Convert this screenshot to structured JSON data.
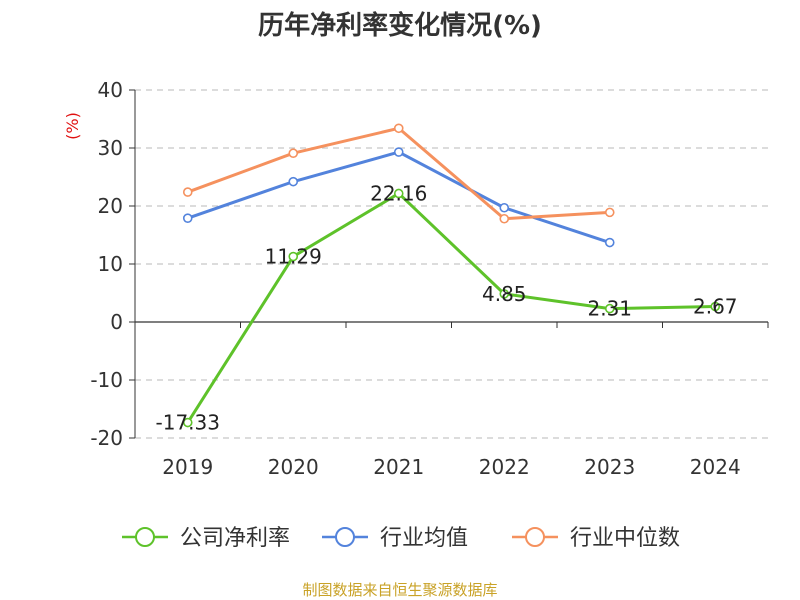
{
  "chart_data": {
    "type": "line",
    "title": "历年净利率变化情况(%)",
    "ylabel": "(%)",
    "categories": [
      "2019",
      "2020",
      "2021",
      "2022",
      "2023",
      "2024"
    ],
    "ylim": [
      -20,
      40
    ],
    "yticks": [
      -20,
      -10,
      0,
      10,
      20,
      30,
      40
    ],
    "grid": true,
    "legend_position": "bottom",
    "series": [
      {
        "name": "公司净利率",
        "color": "#5ec22a",
        "values": [
          -17.33,
          11.29,
          22.16,
          4.85,
          2.31,
          2.67
        ],
        "labels": [
          "-17.33",
          "11.29",
          "22.16",
          "4.85",
          "2.31",
          "2.67"
        ]
      },
      {
        "name": "行业均值",
        "color": "#5383dc",
        "values": [
          17.9,
          24.2,
          29.3,
          19.7,
          13.7,
          null
        ]
      },
      {
        "name": "行业中位数",
        "color": "#f5915e",
        "values": [
          22.4,
          29.1,
          33.4,
          17.8,
          18.9,
          null
        ]
      }
    ]
  },
  "source": "制图数据来自恒生聚源数据库",
  "colors": {
    "ylabel": "#e01010",
    "source": "#c9a227",
    "axis": "#333333",
    "grid": "#c8c8c8"
  }
}
